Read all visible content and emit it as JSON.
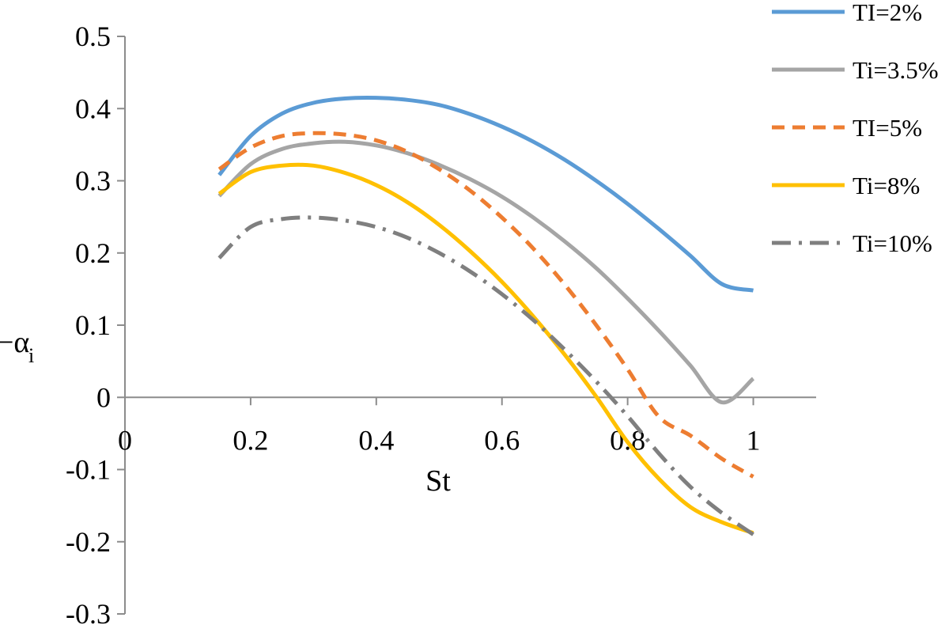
{
  "chart_data": {
    "type": "line",
    "title": "",
    "xlabel": "St",
    "ylabel": "−α_i",
    "ylabel_main": "−α",
    "ylabel_sub": "i",
    "xlim": [
      0,
      1.1
    ],
    "ylim": [
      -0.3,
      0.5
    ],
    "x_ticks": [
      0,
      0.2,
      0.4,
      0.6,
      0.8,
      1
    ],
    "x_tick_labels": [
      "0",
      "0.2",
      "0.4",
      "0.6",
      "0.8",
      "1"
    ],
    "y_ticks": [
      0.5,
      0.4,
      0.3,
      0.2,
      0.1,
      0,
      -0.1,
      -0.2,
      -0.3
    ],
    "y_tick_labels": [
      "0.5",
      "0.4",
      "0.3",
      "0.2",
      "0.1",
      "0",
      "-0.1",
      "-0.2",
      "-0.3"
    ],
    "grid": false,
    "legend_position": "right",
    "x": [
      0.15,
      0.2,
      0.25,
      0.3,
      0.35,
      0.4,
      0.45,
      0.5,
      0.55,
      0.6,
      0.65,
      0.7,
      0.75,
      0.8,
      0.85,
      0.9,
      0.95,
      1.0
    ],
    "series": [
      {
        "name": "TI=2%",
        "color": "#5B9BD5",
        "dash": "solid",
        "values": [
          0.308,
          0.362,
          0.393,
          0.408,
          0.414,
          0.415,
          0.412,
          0.405,
          0.392,
          0.375,
          0.354,
          0.329,
          0.3,
          0.268,
          0.233,
          0.196,
          0.157,
          0.148
        ]
      },
      {
        "name": "Ti=3.5%",
        "color": "#A5A5A5",
        "dash": "solid",
        "values": [
          0.279,
          0.323,
          0.344,
          0.352,
          0.354,
          0.349,
          0.338,
          0.322,
          0.302,
          0.278,
          0.249,
          0.216,
          0.179,
          0.137,
          0.092,
          0.044,
          -0.007,
          0.026
        ]
      },
      {
        "name": "TI=5%",
        "color": "#ED7D31",
        "dash": "dash",
        "values": [
          0.316,
          0.346,
          0.362,
          0.366,
          0.364,
          0.356,
          0.34,
          0.316,
          0.286,
          0.249,
          0.206,
          0.156,
          0.1,
          0.039,
          -0.027,
          -0.053,
          -0.085,
          -0.11
        ]
      },
      {
        "name": "Ti=8%",
        "color": "#FFC000",
        "dash": "solid",
        "values": [
          0.282,
          0.312,
          0.321,
          0.321,
          0.311,
          0.294,
          0.27,
          0.239,
          0.202,
          0.16,
          0.112,
          0.059,
          0.001,
          -0.062,
          -0.113,
          -0.152,
          -0.173,
          -0.188
        ]
      },
      {
        "name": "Ti=10%",
        "color": "#7F7F7F",
        "dash": "dashdot",
        "values": [
          0.193,
          0.236,
          0.247,
          0.249,
          0.245,
          0.236,
          0.221,
          0.2,
          0.174,
          0.143,
          0.107,
          0.066,
          0.022,
          -0.026,
          -0.078,
          -0.124,
          -0.16,
          -0.19
        ]
      }
    ]
  }
}
